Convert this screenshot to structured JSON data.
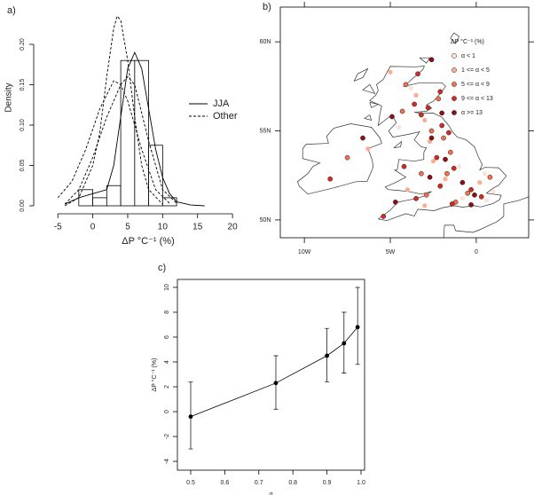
{
  "chart_data": [
    {
      "type": "histogram",
      "panel_label": "a)",
      "xlabel": "ΔP °C⁻¹ (%)",
      "ylabel": "Density",
      "bins": [
        -2,
        0,
        2,
        4,
        6,
        8,
        10,
        12
      ],
      "values": [
        0.02,
        0.01,
        0.025,
        0.18,
        0.18,
        0.075,
        0.01
      ],
      "color": "#000000",
      "lines": [
        {
          "name": "JJA",
          "style": "solid",
          "x": [
            -4,
            -2,
            0,
            2,
            3,
            4,
            5,
            6,
            7,
            8,
            9,
            10,
            11,
            12,
            14,
            16
          ],
          "values": [
            0.002,
            0.01,
            0.015,
            0.02,
            0.05,
            0.11,
            0.17,
            0.19,
            0.17,
            0.12,
            0.07,
            0.035,
            0.015,
            0.005,
            0.001,
            0
          ]
        },
        {
          "name": "Other",
          "style": "dashed",
          "x": [
            -4,
            -2,
            0,
            1,
            2,
            3,
            3.5,
            4,
            5,
            6,
            7,
            8,
            10
          ],
          "values": [
            0,
            0.01,
            0.05,
            0.09,
            0.16,
            0.22,
            0.235,
            0.23,
            0.18,
            0.11,
            0.05,
            0.02,
            0.002
          ]
        },
        {
          "style": "dashed",
          "x": [
            -5,
            -3,
            -1,
            1,
            3,
            4,
            5,
            7,
            9,
            11
          ],
          "values": [
            0.01,
            0.03,
            0.07,
            0.12,
            0.155,
            0.15,
            0.13,
            0.07,
            0.02,
            0.003
          ]
        },
        {
          "style": "dashed",
          "x": [
            -4,
            -2,
            0,
            2,
            4,
            5,
            6,
            8,
            10,
            12
          ],
          "values": [
            0.002,
            0.02,
            0.06,
            0.11,
            0.15,
            0.16,
            0.15,
            0.08,
            0.02,
            0.003
          ]
        }
      ],
      "xlim": [
        -8.2,
        21
      ],
      "ylim": [
        -0.0088,
        0.222
      ],
      "xticks": [
        -5,
        0,
        5,
        10,
        15,
        20
      ],
      "yticks": [
        {
          "value": 0,
          "label": "0.00"
        },
        {
          "value": 0.05,
          "label": "0.05"
        },
        {
          "value": 0.1,
          "label": "0.10"
        },
        {
          "value": 0.15,
          "label": "0.15"
        },
        {
          "value": 0.2,
          "label": "0.20"
        }
      ],
      "legend": "right"
    },
    {
      "type": "scatter",
      "panel_label": "b)",
      "legend_title": "ΔP °C⁻¹ (%)",
      "series": [
        {
          "name": "α < 1",
          "color": "#fde3d6",
          "x": [
            -0.8,
            0.5,
            -4.5,
            -2.0,
            0.6,
            -3.8,
            -1.0,
            1.0
          ],
          "values": [
            51.2,
            52.6,
            55.2,
            52.0,
            51.1,
            57.4,
            53.0,
            51.6
          ]
        },
        {
          "name": "1 <= α < 5",
          "color": "#fcae91",
          "x": [
            -3.5,
            -6.3,
            -2.7,
            -1.8,
            0.2,
            -3.0,
            -4.0,
            -2.5,
            -5.0,
            -3.0
          ],
          "values": [
            57.0,
            54.0,
            54.4,
            52.3,
            52.1,
            50.8,
            51.7,
            53.3,
            58.3,
            55.6
          ]
        },
        {
          "name": "5 <= α < 9",
          "color": "#f2704f",
          "x": [
            -7.5,
            -2.2,
            -4.3,
            -1.5,
            -3.2,
            -0.5,
            -1.2,
            -2.9,
            0.8,
            -2.6,
            -1.9,
            -4.1,
            -1.7
          ],
          "values": [
            53.5,
            56.8,
            56.1,
            53.8,
            52.6,
            51.5,
            51.0,
            51.4,
            52.4,
            55.0,
            54.6,
            57.6,
            52.6
          ]
        },
        {
          "name": "9 <= α < 13",
          "color": "#d42a22",
          "x": [
            -3.4,
            -2.1,
            -3.6,
            -3.2,
            -2.0,
            -1.6,
            -2.3,
            -1.3,
            -0.3,
            0.3,
            -2.1,
            -3.5,
            -5.4,
            -1.4,
            -8.5,
            -4.2,
            -2.8
          ],
          "values": [
            58.2,
            57.2,
            56.5,
            55.9,
            55.3,
            54.9,
            53.5,
            52.9,
            51.7,
            51.3,
            51.9,
            51.2,
            50.2,
            50.9,
            52.3,
            53.0,
            56.3
          ]
        },
        {
          "name": "α >= 13",
          "color": "#8e0f12",
          "x": [
            -6.6,
            -2.6,
            -4.9,
            -2.0,
            -1.8,
            -0.1,
            -0.8,
            -2.7,
            -4.7,
            -2.6,
            -0.3
          ],
          "values": [
            54.6,
            59.0,
            55.8,
            56.0,
            53.4,
            51.4,
            52.1,
            52.4,
            51.0,
            54.6,
            50.85
          ]
        }
      ],
      "xlim": [
        -11.4,
        3.05
      ],
      "ylim": [
        49.0,
        61.95
      ],
      "xticks": [
        {
          "value": -10,
          "label": "10W"
        },
        {
          "value": -5,
          "label": "5W"
        },
        0
      ],
      "yticks": [
        {
          "value": 50,
          "label": "50N"
        },
        {
          "value": 55,
          "label": "55N"
        },
        {
          "value": 60,
          "label": "60N"
        }
      ],
      "legend": "upper right"
    },
    {
      "type": "line",
      "panel_label": "c)",
      "xlabel": "q",
      "ylabel": "ΔP °C⁻¹ (%)",
      "x": [
        0.5,
        0.75,
        0.9,
        0.95,
        0.99
      ],
      "values": [
        -0.4,
        2.3,
        4.5,
        5.5,
        6.8
      ],
      "lower": [
        -3.0,
        0.2,
        2.4,
        3.1,
        3.8
      ],
      "upper": [
        2.4,
        4.5,
        6.7,
        8.0,
        10.0
      ],
      "color": "#000000",
      "xlim": [
        0.461,
        1.0104
      ],
      "ylim": [
        -4.71,
        10.64
      ],
      "xticks": [
        0.5,
        0.6,
        0.7,
        0.8,
        0.9,
        {
          "value": 1,
          "label": "1.0"
        }
      ],
      "yticks": [
        -4,
        -2,
        0,
        2,
        4,
        6,
        8,
        10
      ]
    }
  ]
}
